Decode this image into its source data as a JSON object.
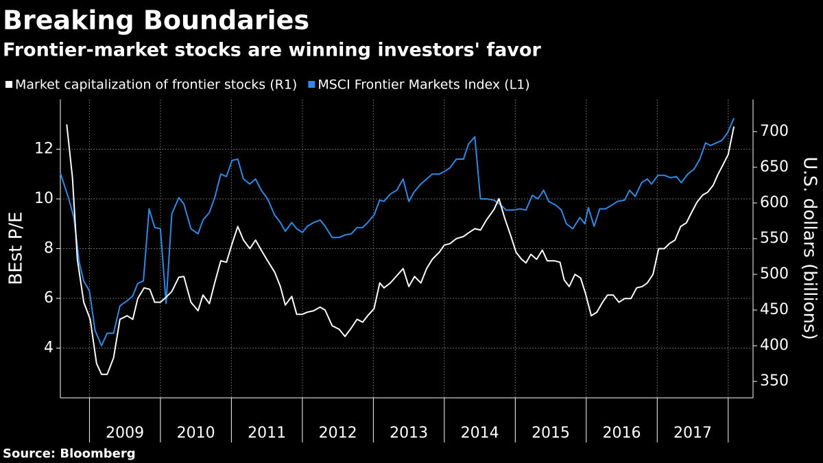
{
  "chart_data": {
    "type": "line",
    "title": "Breaking Boundaries",
    "subtitle": "Frontier-market stocks are winning investors' favor",
    "source": "Source: Bloomberg",
    "ylabel": "BEst P/E",
    "y2label": "U.S. dollars (billions)",
    "xlim": [
      2008.59,
      2018.35
    ],
    "xticks": [
      2009,
      2010,
      2011,
      2012,
      2013,
      2014,
      2015,
      2016,
      2017,
      2018
    ],
    "years": [
      2009,
      2010,
      2011,
      2012,
      2013,
      2014,
      2015,
      2016,
      2017
    ],
    "ylim": [
      2,
      14
    ],
    "yticks": [
      4,
      6,
      8,
      10,
      12
    ],
    "y2lim": [
      327,
      745
    ],
    "y2ticks": [
      350,
      400,
      450,
      500,
      550,
      600,
      650,
      700
    ],
    "grid": true,
    "series": [
      {
        "name": "Market capitalization of frontier stocks (R1)",
        "color": "#ffffff",
        "axis": "y2",
        "x": [
          2008.68,
          2008.76,
          2008.83,
          2008.92,
          2009.01,
          2009.1,
          2009.17,
          2009.25,
          2009.34,
          2009.43,
          2009.53,
          2009.61,
          2009.68,
          2009.77,
          2009.85,
          2009.92,
          2010.0,
          2010.08,
          2010.16,
          2010.26,
          2010.33,
          2010.43,
          2010.53,
          2010.6,
          2010.69,
          2010.77,
          2010.85,
          2010.93,
          2011.01,
          2011.09,
          2011.17,
          2011.26,
          2011.34,
          2011.42,
          2011.51,
          2011.61,
          2011.69,
          2011.76,
          2011.85,
          2011.92,
          2012.0,
          2012.07,
          2012.16,
          2012.25,
          2012.32,
          2012.42,
          2012.52,
          2012.6,
          2012.69,
          2012.77,
          2012.85,
          2012.92,
          2013.01,
          2013.09,
          2013.15,
          2013.24,
          2013.33,
          2013.42,
          2013.5,
          2013.58,
          2013.67,
          2013.75,
          2013.83,
          2013.93,
          2014.0,
          2014.08,
          2014.17,
          2014.27,
          2014.34,
          2014.43,
          2014.51,
          2014.6,
          2014.7,
          2014.77,
          2014.85,
          2014.94,
          2015.01,
          2015.09,
          2015.15,
          2015.22,
          2015.3,
          2015.38,
          2015.45,
          2015.55,
          2015.63,
          2015.69,
          2015.76,
          2015.84,
          2015.92,
          2015.99,
          2016.07,
          2016.15,
          2016.23,
          2016.3,
          2016.38,
          2016.46,
          2016.54,
          2016.63,
          2016.71,
          2016.79,
          2016.86,
          2016.94,
          2017.02,
          2017.1,
          2017.17,
          2017.25,
          2017.33,
          2017.41,
          2017.48,
          2017.56,
          2017.64,
          2017.71,
          2017.79,
          2017.85,
          2017.93,
          2018.0,
          2018.08
        ],
        "values": [
          710,
          636,
          521,
          461,
          437,
          375,
          360,
          360,
          383,
          437,
          442,
          437,
          466,
          481,
          479,
          461,
          461,
          468,
          476,
          496,
          497,
          461,
          449,
          471,
          459,
          490,
          519,
          517,
          543,
          567,
          548,
          536,
          548,
          534,
          519,
          503,
          483,
          457,
          469,
          444,
          444,
          447,
          449,
          454,
          450,
          428,
          423,
          413,
          425,
          437,
          433,
          442,
          452,
          488,
          481,
          488,
          498,
          508,
          483,
          497,
          488,
          508,
          521,
          531,
          541,
          543,
          550,
          553,
          558,
          564,
          562,
          577,
          591,
          606,
          579,
          553,
          531,
          521,
          516,
          528,
          521,
          534,
          519,
          519,
          517,
          492,
          483,
          500,
          495,
          473,
          442,
          447,
          461,
          471,
          471,
          461,
          466,
          466,
          481,
          483,
          488,
          500,
          536,
          536,
          543,
          548,
          567,
          572,
          586,
          601,
          611,
          615,
          625,
          639,
          654,
          668,
          707
        ]
      },
      {
        "name": "MSCI Frontier Markets Index (L1)",
        "color": "#2f8ae8",
        "x": [
          2008.59,
          2008.71,
          2008.78,
          2008.86,
          2008.92,
          2009.0,
          2009.08,
          2009.17,
          2009.25,
          2009.34,
          2009.43,
          2009.53,
          2009.61,
          2009.68,
          2009.76,
          2009.84,
          2009.92,
          2010.0,
          2010.08,
          2010.16,
          2010.26,
          2010.33,
          2010.43,
          2010.53,
          2010.6,
          2010.69,
          2010.77,
          2010.85,
          2010.93,
          2011.01,
          2011.09,
          2011.17,
          2011.26,
          2011.34,
          2011.42,
          2011.51,
          2011.61,
          2011.69,
          2011.76,
          2011.85,
          2011.92,
          2012.0,
          2012.07,
          2012.16,
          2012.25,
          2012.32,
          2012.42,
          2012.52,
          2012.6,
          2012.69,
          2012.77,
          2012.85,
          2012.92,
          2013.01,
          2013.09,
          2013.15,
          2013.24,
          2013.33,
          2013.42,
          2013.5,
          2013.58,
          2013.67,
          2013.75,
          2013.83,
          2013.93,
          2014.0,
          2014.08,
          2014.17,
          2014.27,
          2014.34,
          2014.43,
          2014.51,
          2014.6,
          2014.7,
          2014.8,
          2014.87,
          2014.97,
          2015.07,
          2015.15,
          2015.24,
          2015.32,
          2015.4,
          2015.47,
          2015.57,
          2015.65,
          2015.72,
          2015.81,
          2015.91,
          2015.98,
          2016.03,
          2016.11,
          2016.19,
          2016.27,
          2016.36,
          2016.44,
          2016.54,
          2016.61,
          2016.69,
          2016.78,
          2016.86,
          2016.92,
          2017.01,
          2017.1,
          2017.19,
          2017.27,
          2017.34,
          2017.43,
          2017.52,
          2017.6,
          2017.68,
          2017.75,
          2017.83,
          2017.91,
          2017.99,
          2018.08
        ],
        "values": [
          11.04,
          10.0,
          9.25,
          7.4,
          6.7,
          6.3,
          4.7,
          4.1,
          4.6,
          4.6,
          5.7,
          5.9,
          6.1,
          6.6,
          6.7,
          9.6,
          8.85,
          8.8,
          5.8,
          9.4,
          10.05,
          9.8,
          8.8,
          8.6,
          9.15,
          9.45,
          10.1,
          11.0,
          10.9,
          11.55,
          11.6,
          10.8,
          10.6,
          10.8,
          10.35,
          10.0,
          9.35,
          9.05,
          8.7,
          9.05,
          8.8,
          8.65,
          8.9,
          9.05,
          9.15,
          8.9,
          8.45,
          8.45,
          8.55,
          8.6,
          8.85,
          8.85,
          9.05,
          9.35,
          9.95,
          9.9,
          10.2,
          10.35,
          10.8,
          9.9,
          10.3,
          10.6,
          10.8,
          11.0,
          11.0,
          11.1,
          11.25,
          11.6,
          11.6,
          12.2,
          12.5,
          10.0,
          10.0,
          9.95,
          9.75,
          9.55,
          9.55,
          9.6,
          9.55,
          10.15,
          10.0,
          10.35,
          9.9,
          9.75,
          9.55,
          9.0,
          8.8,
          9.25,
          9.0,
          9.65,
          8.9,
          9.6,
          9.6,
          9.75,
          9.9,
          9.95,
          10.35,
          10.1,
          10.65,
          10.8,
          10.6,
          10.95,
          10.95,
          10.85,
          10.9,
          10.65,
          11.0,
          11.2,
          11.6,
          12.25,
          12.15,
          12.25,
          12.35,
          12.65,
          13.25
        ]
      }
    ]
  }
}
